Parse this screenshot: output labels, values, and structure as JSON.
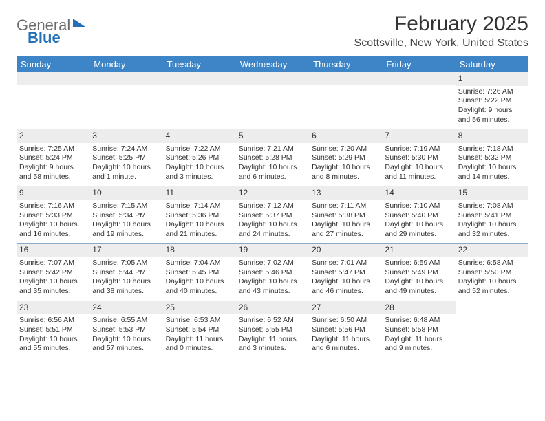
{
  "brand": {
    "part1": "General",
    "part2": "Blue"
  },
  "title": "February 2025",
  "location": "Scottsville, New York, United States",
  "colors": {
    "header_bg": "#3d85c6",
    "header_text": "#ffffff",
    "daynum_bg": "#ededed",
    "row_divider": "#8aa9c7",
    "brand_blue": "#2571b8"
  },
  "daysOfWeek": [
    "Sunday",
    "Monday",
    "Tuesday",
    "Wednesday",
    "Thursday",
    "Friday",
    "Saturday"
  ],
  "weeks": [
    [
      {
        "blank": true
      },
      {
        "blank": true
      },
      {
        "blank": true
      },
      {
        "blank": true
      },
      {
        "blank": true
      },
      {
        "blank": true
      },
      {
        "n": "1",
        "sunrise": "7:26 AM",
        "sunset": "5:22 PM",
        "daylight": "9 hours and 56 minutes."
      }
    ],
    [
      {
        "n": "2",
        "sunrise": "7:25 AM",
        "sunset": "5:24 PM",
        "daylight": "9 hours and 58 minutes."
      },
      {
        "n": "3",
        "sunrise": "7:24 AM",
        "sunset": "5:25 PM",
        "daylight": "10 hours and 1 minute."
      },
      {
        "n": "4",
        "sunrise": "7:22 AM",
        "sunset": "5:26 PM",
        "daylight": "10 hours and 3 minutes."
      },
      {
        "n": "5",
        "sunrise": "7:21 AM",
        "sunset": "5:28 PM",
        "daylight": "10 hours and 6 minutes."
      },
      {
        "n": "6",
        "sunrise": "7:20 AM",
        "sunset": "5:29 PM",
        "daylight": "10 hours and 8 minutes."
      },
      {
        "n": "7",
        "sunrise": "7:19 AM",
        "sunset": "5:30 PM",
        "daylight": "10 hours and 11 minutes."
      },
      {
        "n": "8",
        "sunrise": "7:18 AM",
        "sunset": "5:32 PM",
        "daylight": "10 hours and 14 minutes."
      }
    ],
    [
      {
        "n": "9",
        "sunrise": "7:16 AM",
        "sunset": "5:33 PM",
        "daylight": "10 hours and 16 minutes."
      },
      {
        "n": "10",
        "sunrise": "7:15 AM",
        "sunset": "5:34 PM",
        "daylight": "10 hours and 19 minutes."
      },
      {
        "n": "11",
        "sunrise": "7:14 AM",
        "sunset": "5:36 PM",
        "daylight": "10 hours and 21 minutes."
      },
      {
        "n": "12",
        "sunrise": "7:12 AM",
        "sunset": "5:37 PM",
        "daylight": "10 hours and 24 minutes."
      },
      {
        "n": "13",
        "sunrise": "7:11 AM",
        "sunset": "5:38 PM",
        "daylight": "10 hours and 27 minutes."
      },
      {
        "n": "14",
        "sunrise": "7:10 AM",
        "sunset": "5:40 PM",
        "daylight": "10 hours and 29 minutes."
      },
      {
        "n": "15",
        "sunrise": "7:08 AM",
        "sunset": "5:41 PM",
        "daylight": "10 hours and 32 minutes."
      }
    ],
    [
      {
        "n": "16",
        "sunrise": "7:07 AM",
        "sunset": "5:42 PM",
        "daylight": "10 hours and 35 minutes."
      },
      {
        "n": "17",
        "sunrise": "7:05 AM",
        "sunset": "5:44 PM",
        "daylight": "10 hours and 38 minutes."
      },
      {
        "n": "18",
        "sunrise": "7:04 AM",
        "sunset": "5:45 PM",
        "daylight": "10 hours and 40 minutes."
      },
      {
        "n": "19",
        "sunrise": "7:02 AM",
        "sunset": "5:46 PM",
        "daylight": "10 hours and 43 minutes."
      },
      {
        "n": "20",
        "sunrise": "7:01 AM",
        "sunset": "5:47 PM",
        "daylight": "10 hours and 46 minutes."
      },
      {
        "n": "21",
        "sunrise": "6:59 AM",
        "sunset": "5:49 PM",
        "daylight": "10 hours and 49 minutes."
      },
      {
        "n": "22",
        "sunrise": "6:58 AM",
        "sunset": "5:50 PM",
        "daylight": "10 hours and 52 minutes."
      }
    ],
    [
      {
        "n": "23",
        "sunrise": "6:56 AM",
        "sunset": "5:51 PM",
        "daylight": "10 hours and 55 minutes."
      },
      {
        "n": "24",
        "sunrise": "6:55 AM",
        "sunset": "5:53 PM",
        "daylight": "10 hours and 57 minutes."
      },
      {
        "n": "25",
        "sunrise": "6:53 AM",
        "sunset": "5:54 PM",
        "daylight": "11 hours and 0 minutes."
      },
      {
        "n": "26",
        "sunrise": "6:52 AM",
        "sunset": "5:55 PM",
        "daylight": "11 hours and 3 minutes."
      },
      {
        "n": "27",
        "sunrise": "6:50 AM",
        "sunset": "5:56 PM",
        "daylight": "11 hours and 6 minutes."
      },
      {
        "n": "28",
        "sunrise": "6:48 AM",
        "sunset": "5:58 PM",
        "daylight": "11 hours and 9 minutes."
      },
      {
        "blank": true,
        "noStripe": true
      }
    ]
  ],
  "labels": {
    "sunrise": "Sunrise:",
    "sunset": "Sunset:",
    "daylight": "Daylight:"
  }
}
